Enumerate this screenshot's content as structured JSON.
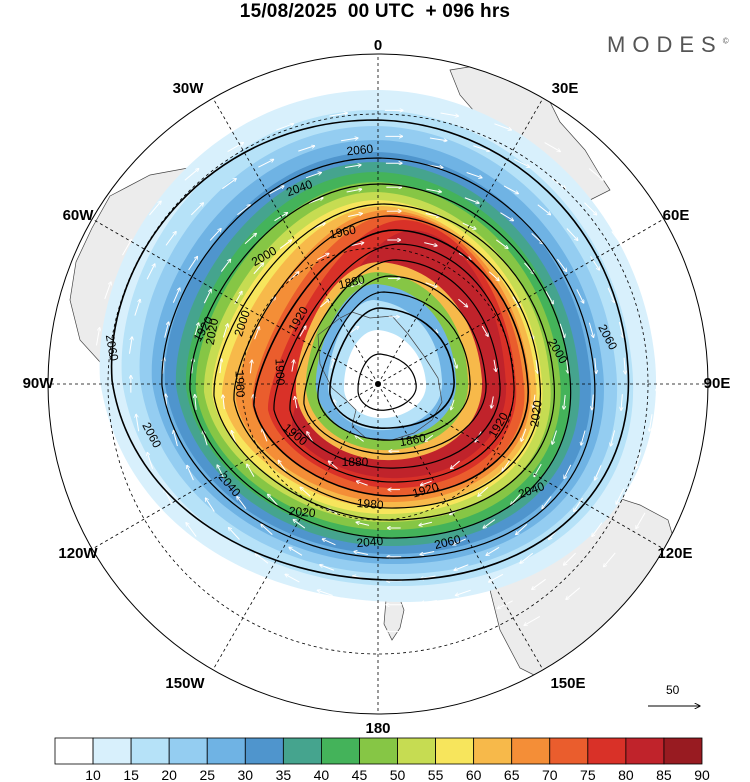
{
  "title": "15/08/2025  00 UTC  + 096 hrs",
  "logo": "MODES",
  "logo_mark": "©",
  "longitude_labels": [
    "0",
    "30E",
    "60E",
    "90E",
    "120E",
    "150E",
    "180",
    "150W",
    "120W",
    "90W",
    "60W",
    "30W"
  ],
  "contour_labels": [
    "2060",
    "2040",
    "2000",
    "1960",
    "1880",
    "2060",
    "2060",
    "2000",
    "2020",
    "1920",
    "1900",
    "1960",
    "1860",
    "1880",
    "1920",
    "2020",
    "2040",
    "1980",
    "1920",
    "2020",
    "2040",
    "2060",
    "2060",
    "2040",
    "1900",
    "2000",
    "1920"
  ],
  "colorbar": {
    "ticks": [
      "10",
      "15",
      "20",
      "25",
      "30",
      "35",
      "40",
      "45",
      "50",
      "55",
      "60",
      "65",
      "70",
      "75",
      "80",
      "85",
      "90"
    ],
    "colors": [
      "#ffffff",
      "#d8f0fc",
      "#b6e2f8",
      "#94cdf1",
      "#6fb3e4",
      "#4f95cd",
      "#45a48e",
      "#44b35a",
      "#86c645",
      "#c6dc52",
      "#f7e55c",
      "#f7b94a",
      "#f48e37",
      "#ea5d2d",
      "#d93128",
      "#c0232b",
      "#981b21"
    ]
  },
  "reference_vector": {
    "label": "50"
  }
}
